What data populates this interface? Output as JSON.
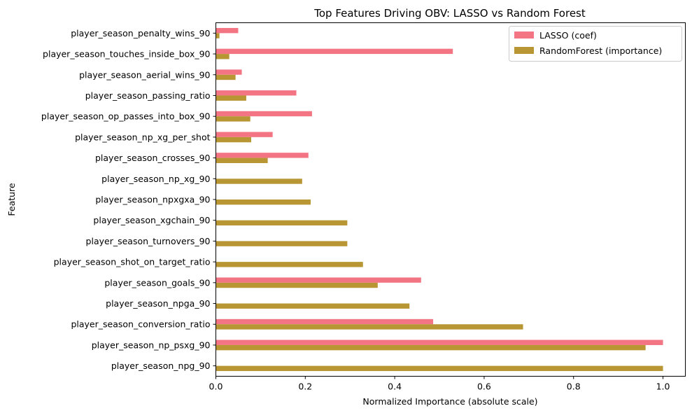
{
  "chart_data": {
    "type": "bar",
    "orientation": "horizontal",
    "title": "Top Features Driving OBV: LASSO vs Random Forest",
    "xlabel": "Normalized Importance (absolute scale)",
    "ylabel": "Feature",
    "xlim": [
      0,
      1.05
    ],
    "xticks": [
      0.0,
      0.2,
      0.4,
      0.6,
      0.8,
      1.0
    ],
    "xtick_labels": [
      "0.0",
      "0.2",
      "0.4",
      "0.6",
      "0.8",
      "1.0"
    ],
    "grid": false,
    "legend_position": "top-right",
    "categories": [
      "player_season_penalty_wins_90",
      "player_season_touches_inside_box_90",
      "player_season_aerial_wins_90",
      "player_season_passing_ratio",
      "player_season_op_passes_into_box_90",
      "player_season_np_xg_per_shot",
      "player_season_crosses_90",
      "player_season_np_xg_90",
      "player_season_npxgxa_90",
      "player_season_xgchain_90",
      "player_season_turnovers_90",
      "player_season_shot_on_target_ratio",
      "player_season_goals_90",
      "player_season_npga_90",
      "player_season_conversion_ratio",
      "player_season_np_psxg_90",
      "player_season_npg_90"
    ],
    "series": [
      {
        "name": "LASSO (coef)",
        "color": "#f37583",
        "values": [
          0.05,
          0.53,
          0.058,
          0.18,
          0.215,
          0.127,
          0.207,
          0,
          0,
          0,
          0,
          0,
          0.459,
          0,
          0.486,
          1.0,
          0
        ]
      },
      {
        "name": "RandomForest (importance)",
        "color": "#b79633",
        "values": [
          0.008,
          0.03,
          0.044,
          0.068,
          0.077,
          0.079,
          0.116,
          0.193,
          0.212,
          0.294,
          0.294,
          0.329,
          0.362,
          0.433,
          0.687,
          0.961,
          1.0
        ]
      }
    ]
  }
}
